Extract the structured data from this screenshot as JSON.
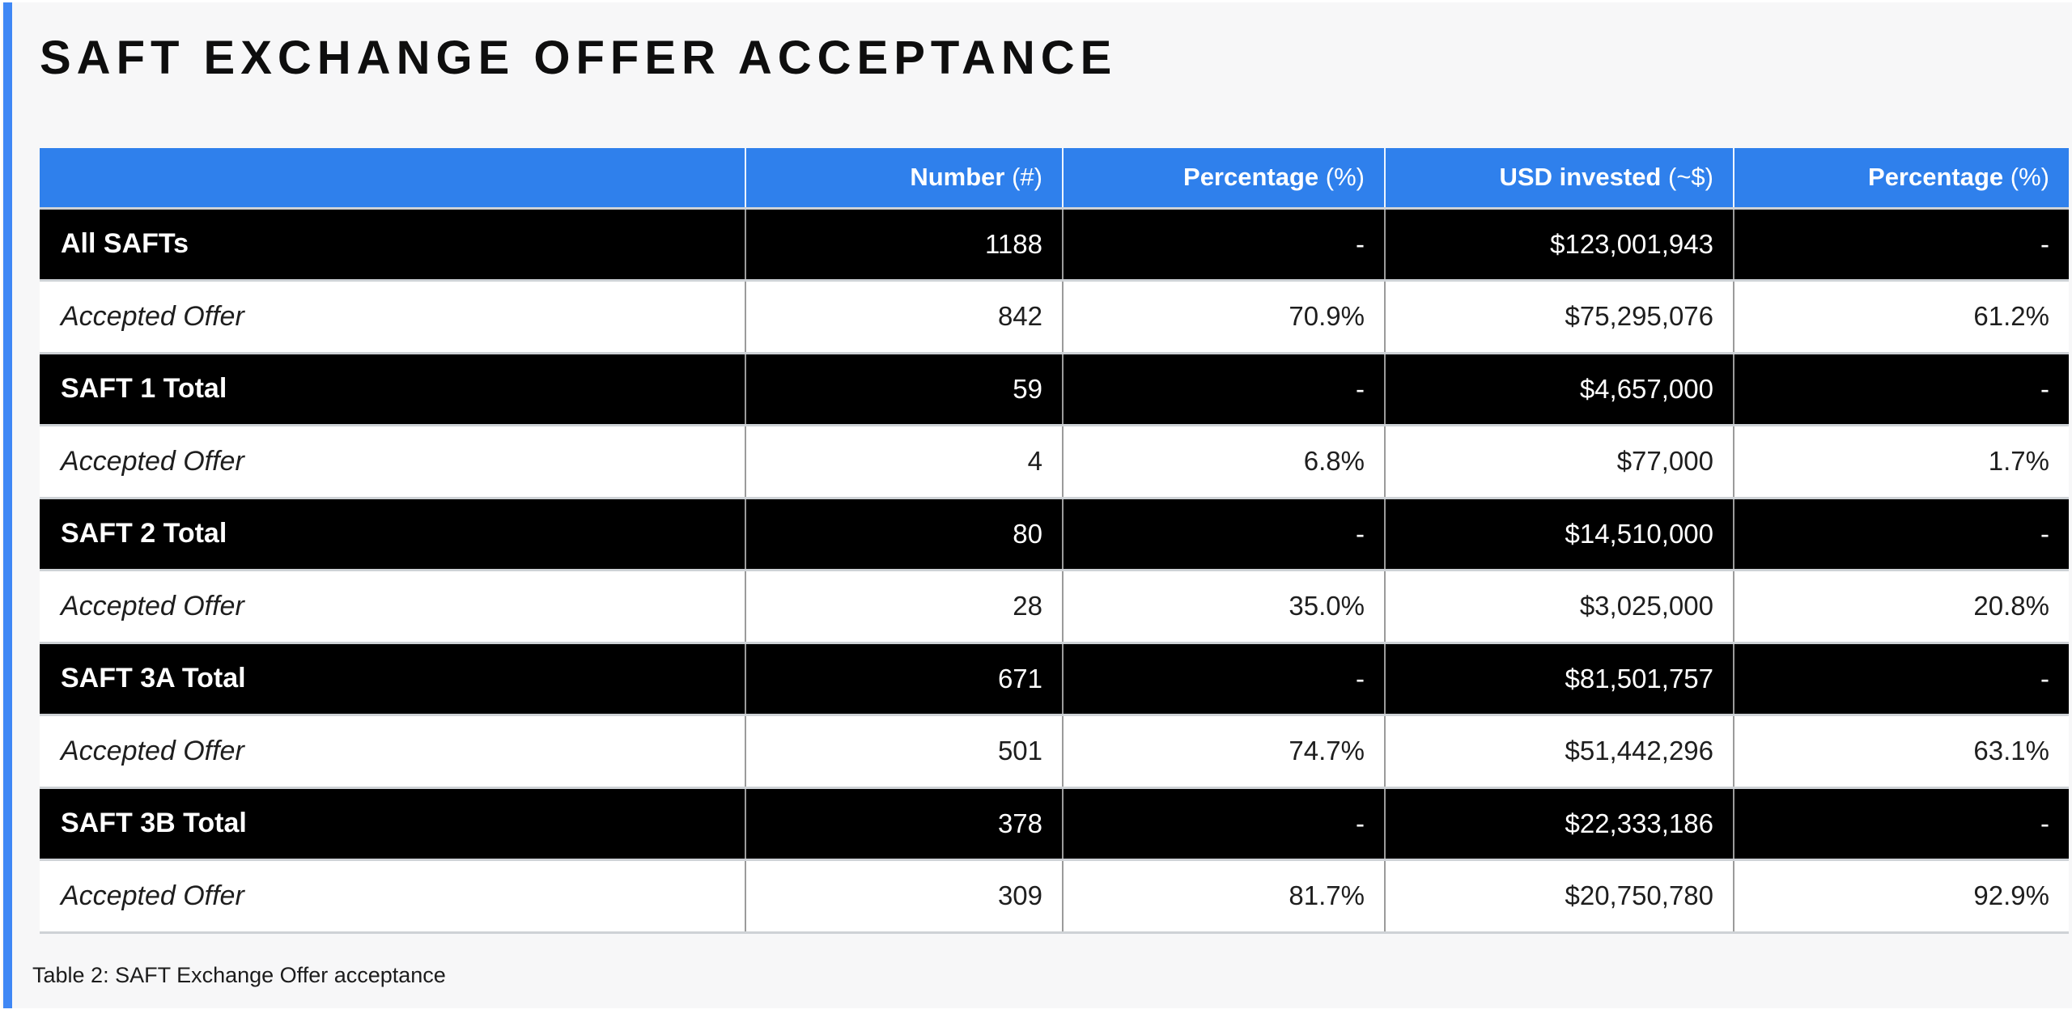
{
  "title": "SAFT EXCHANGE OFFER ACCEPTANCE",
  "caption": "Table 2: SAFT Exchange Offer acceptance",
  "colors": {
    "page_background": "#f7f7f8",
    "accent_bar_blue": "#3f87f5",
    "header_blue": "#2f80ec",
    "total_row_black": "#000000",
    "accepted_row_white": "#ffffff"
  },
  "table": {
    "columns": [
      {
        "label": "",
        "unit": ""
      },
      {
        "label": "Number",
        "unit": "(#)"
      },
      {
        "label": "Percentage",
        "unit": "(%)"
      },
      {
        "label": "USD invested",
        "unit": "(~$)"
      },
      {
        "label": "Percentage",
        "unit": "(%)"
      }
    ],
    "rows": [
      {
        "style": "total",
        "cells": [
          "All SAFTs",
          "1188",
          "-",
          "$123,001,943",
          "-"
        ]
      },
      {
        "style": "accepted",
        "cells": [
          "Accepted Offer",
          "842",
          "70.9%",
          "$75,295,076",
          "61.2%"
        ]
      },
      {
        "style": "total",
        "cells": [
          "SAFT 1 Total",
          "59",
          "-",
          "$4,657,000",
          "-"
        ]
      },
      {
        "style": "accepted",
        "cells": [
          "Accepted Offer",
          "4",
          "6.8%",
          "$77,000",
          "1.7%"
        ]
      },
      {
        "style": "total",
        "cells": [
          "SAFT 2 Total",
          "80",
          "-",
          "$14,510,000",
          "-"
        ]
      },
      {
        "style": "accepted",
        "cells": [
          "Accepted Offer",
          "28",
          "35.0%",
          "$3,025,000",
          "20.8%"
        ]
      },
      {
        "style": "total",
        "cells": [
          "SAFT 3A Total",
          "671",
          "-",
          "$81,501,757",
          "-"
        ]
      },
      {
        "style": "accepted",
        "cells": [
          "Accepted Offer",
          "501",
          "74.7%",
          "$51,442,296",
          "63.1%"
        ]
      },
      {
        "style": "total",
        "cells": [
          "SAFT 3B Total",
          "378",
          "-",
          "$22,333,186",
          "-"
        ]
      },
      {
        "style": "accepted",
        "cells": [
          "Accepted Offer",
          "309",
          "81.7%",
          "$20,750,780",
          "92.9%"
        ]
      }
    ]
  }
}
